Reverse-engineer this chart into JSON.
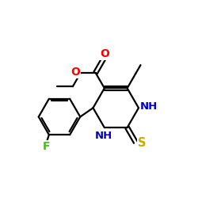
{
  "background_color": "#ffffff",
  "bond_color": "#000000",
  "atom_colors": {
    "O": "#ff0000",
    "N": "#0000cc",
    "S": "#ccaa00",
    "F": "#33cc00",
    "C": "#000000"
  },
  "figsize": [
    2.5,
    2.5
  ],
  "dpi": 100
}
